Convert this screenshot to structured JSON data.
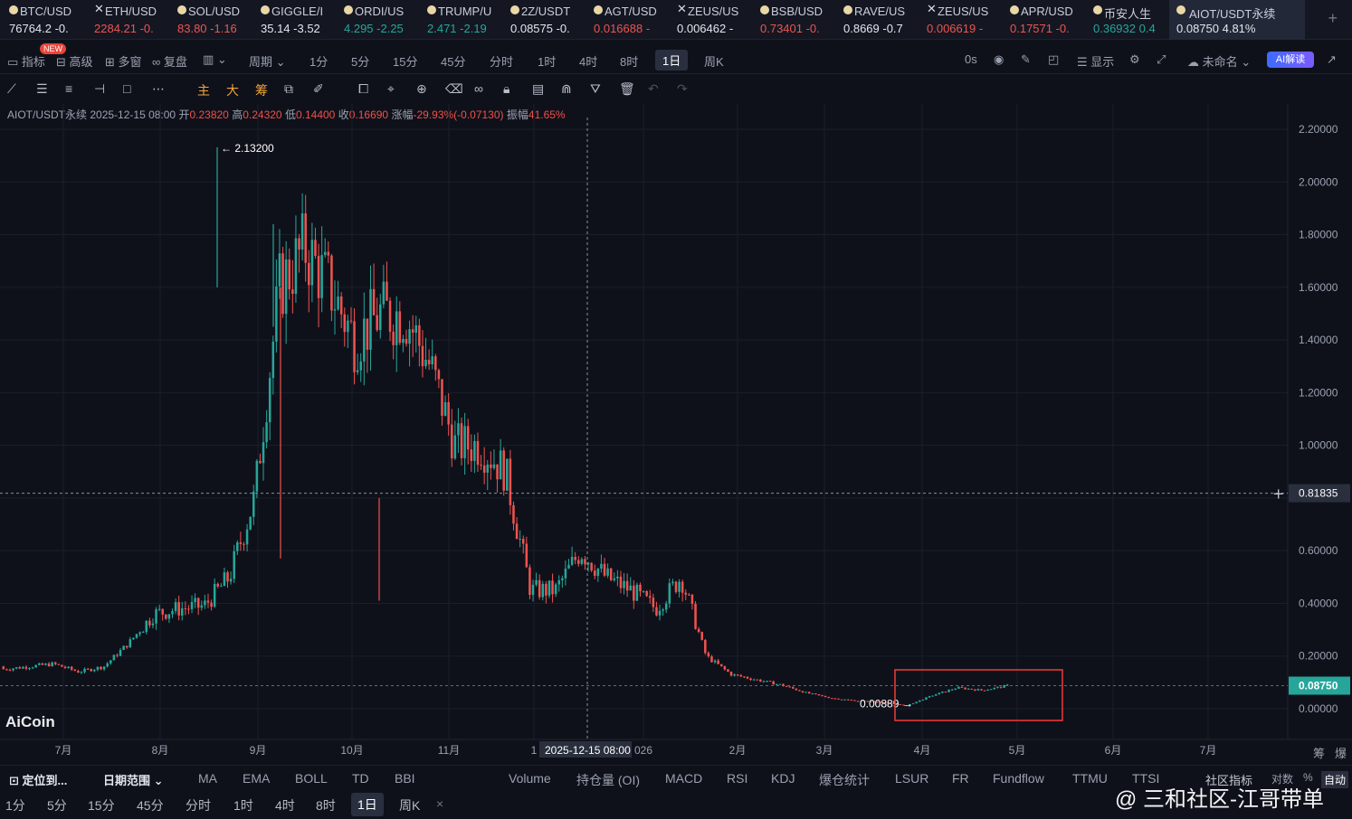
{
  "tickers": [
    {
      "name": "BTC/USD",
      "price": "76764.2 -0.",
      "dir": "neutral",
      "icon": "coin-dot"
    },
    {
      "name": "ETH/USD",
      "price": "2284.21 -0.",
      "dir": "down",
      "icon": "x-icon"
    },
    {
      "name": "SOL/USD",
      "price": "83.80 -1.16",
      "dir": "down",
      "icon": "coin-dot"
    },
    {
      "name": "GIGGLE/I",
      "price": "35.14 -3.52",
      "dir": "neutral",
      "icon": "coin-dot"
    },
    {
      "name": "ORDI/US",
      "price": "4.295 -2.25",
      "dir": "up",
      "icon": "coin-dot"
    },
    {
      "name": "TRUMP/U",
      "price": "2.471 -2.19",
      "dir": "up",
      "icon": "coin-dot"
    },
    {
      "name": "2Z/USDT",
      "price": "0.08575 -0.",
      "dir": "neutral",
      "icon": "coin-dot"
    },
    {
      "name": "AGT/USD",
      "price": "0.016688 -",
      "dir": "down",
      "icon": "coin-dot"
    },
    {
      "name": "ZEUS/US",
      "price": "0.006462 -",
      "dir": "neutral",
      "icon": "x-icon"
    },
    {
      "name": "BSB/USD",
      "price": "0.73401 -0.",
      "dir": "down",
      "icon": "coin-dot"
    },
    {
      "name": "RAVE/US",
      "price": "0.8669 -0.7",
      "dir": "neutral",
      "icon": "coin-dot"
    },
    {
      "name": "ZEUS/US",
      "price": "0.006619 -",
      "dir": "down",
      "icon": "x-icon"
    },
    {
      "name": "APR/USD",
      "price": "0.17571 -0.",
      "dir": "down",
      "icon": "coin-dot"
    },
    {
      "name": "币安人生",
      "price": "0.36932 0.4",
      "dir": "up",
      "icon": "coin-dot"
    },
    {
      "name": "AIOT/USDT永续",
      "price": "0.08750 4.81%",
      "dir": "neutral",
      "icon": "coin-dot"
    }
  ],
  "toolbar": {
    "indicators": "指标",
    "advanced": "高级",
    "multi": "多窗",
    "replay": "复盘",
    "period": "周期",
    "new_badge": "NEW",
    "intervals": [
      "1分",
      "5分",
      "15分",
      "45分",
      "分时",
      "1时",
      "4时",
      "8时",
      "1日",
      "周K"
    ],
    "selected_interval": "1日",
    "countdown": "0s",
    "display": "显示",
    "unnamed": "未命名",
    "ai": "AI解读"
  },
  "draw_tools": {
    "main": "主",
    "big": "大",
    "chip": "筹"
  },
  "info": {
    "symbol": "AIOT/USDT永续",
    "date": "2025-12-15 08:00",
    "open_label": "开",
    "open": "0.23820",
    "high_label": "高",
    "high": "0.24320",
    "low_label": "低",
    "low": "0.14400",
    "close_label": "收",
    "close": "0.16690",
    "change_label": "涨幅",
    "change": "-29.93%(-0.07130)",
    "amp_label": "振幅",
    "amp": "41.65%"
  },
  "chart_data": {
    "type": "candlestick",
    "symbol": "AIOT/USDT永续",
    "interval": "1日",
    "ylim": [
      0,
      2.2
    ],
    "y_ticks": [
      "2.20000",
      "2.00000",
      "1.80000",
      "1.60000",
      "1.40000",
      "1.20000",
      "1.00000",
      "0.80000",
      "0.60000",
      "0.40000",
      "0.20000",
      "0.00000"
    ],
    "x_ticks": [
      "7月",
      "8月",
      "9月",
      "10月",
      "11月",
      "1",
      "026",
      "2月",
      "3月",
      "4月",
      "5月",
      "6月",
      "7月"
    ],
    "crosshair_time": "2025-12-15 08:00",
    "crosshair_price": "0.81835",
    "last_price": "0.08750",
    "high_marker": "2.13200",
    "low_marker": "0.00889",
    "series_colors": {
      "up": "#26a69a",
      "down": "#ef5350"
    },
    "close_path_approx": [
      [
        0.16,
        0.15
      ],
      [
        0.18,
        0.16
      ],
      [
        0.16,
        0.17
      ],
      [
        0.16,
        0.14
      ],
      [
        0.17,
        0.16
      ],
      [
        0.2,
        0.25
      ],
      [
        0.3,
        0.36
      ],
      [
        0.42,
        0.38
      ],
      [
        0.4,
        0.39
      ],
      [
        0.45,
        0.5
      ],
      [
        0.6,
        0.8
      ],
      [
        1.2,
        1.6
      ],
      [
        1.8,
        1.75
      ],
      [
        1.75,
        1.6
      ],
      [
        1.7,
        1.4
      ],
      [
        1.3,
        1.5
      ],
      [
        1.4,
        1.5
      ],
      [
        1.5,
        1.3
      ],
      [
        1.25,
        1.0
      ],
      [
        0.85,
        1.0
      ],
      [
        1.05,
        0.9
      ],
      [
        0.7,
        0.45
      ],
      [
        0.4,
        0.45
      ],
      [
        0.6,
        0.6
      ],
      [
        0.6,
        0.5
      ],
      [
        0.5,
        0.45
      ],
      [
        0.42,
        0.38
      ],
      [
        0.45,
        0.5
      ],
      [
        0.45,
        0.2
      ],
      [
        0.2,
        0.13
      ],
      [
        0.12,
        0.11
      ],
      [
        0.1,
        0.09
      ],
      [
        0.08,
        0.06
      ],
      [
        0.05,
        0.04
      ],
      [
        0.035,
        0.03
      ],
      [
        0.03,
        0.025
      ],
      [
        0.02,
        0.012
      ],
      [
        0.02,
        0.05
      ],
      [
        0.06,
        0.08
      ],
      [
        0.08,
        0.07
      ],
      [
        0.06,
        0.0875
      ]
    ]
  },
  "bottom": {
    "locate": "定位到...",
    "range": "日期范围",
    "indicators": [
      "MA",
      "EMA",
      "BOLL",
      "TD",
      "BBI"
    ],
    "sub_indicators": [
      "Volume",
      "持仓量 (OI)",
      "MACD",
      "RSI",
      "KDJ",
      "爆仓统计",
      "LSUR",
      "FR",
      "Fundflow",
      "TTMU",
      "TTSI"
    ],
    "community": "社区指标",
    "log": "对数",
    "pct": "%",
    "auto": "自动",
    "intervals": [
      "1分",
      "5分",
      "15分",
      "45分",
      "分时",
      "1时",
      "4时",
      "8时",
      "1日",
      "周K"
    ],
    "selected": "1日",
    "corner_a": "筹",
    "corner_b": "爆"
  },
  "logo": "AiCoin",
  "watermark": "@ 三和社区-江哥带单"
}
